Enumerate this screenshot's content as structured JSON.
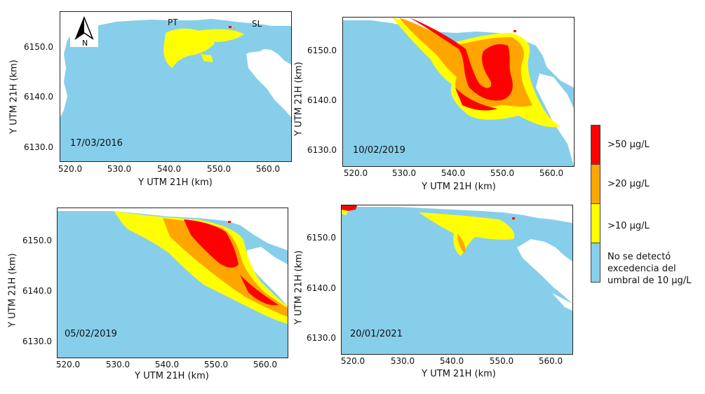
{
  "panels": [
    {
      "id": "p1",
      "date": "17/03/2016",
      "xlabel": "Y UTM 21H (km)",
      "ylabel": "Y UTM 21H (km)",
      "xticks": [
        "520.0",
        "530.0",
        "540.0",
        "550.0",
        "560.0"
      ],
      "yticks": [
        "6150.0",
        "6140.0",
        "6130.0"
      ],
      "places": [
        "PT",
        "SL"
      ],
      "has_north_arrow": true,
      "north_label": "N",
      "intensity": "low"
    },
    {
      "id": "p2",
      "date": "10/02/2019",
      "xlabel": "Y UTM 21H (km)",
      "ylabel": "Y UTM 21H (km)",
      "xticks": [
        "520.0",
        "530.0",
        "540.0",
        "550.0",
        "560.0"
      ],
      "yticks": [
        "6150.0",
        "6140.0",
        "6130.0"
      ],
      "intensity": "very-high"
    },
    {
      "id": "p3",
      "date": "05/02/2019",
      "xlabel": "Y UTM 21H (km)",
      "ylabel": "Y UTM 21H (km)",
      "xticks": [
        "520.0",
        "530.0",
        "540.0",
        "550.0",
        "560.0"
      ],
      "yticks": [
        "6150.0",
        "6140.0",
        "6130.0"
      ],
      "intensity": "high"
    },
    {
      "id": "p4",
      "date": "20/01/2021",
      "xlabel": "Y UTM 21H (km)",
      "ylabel": "Y UTM 21H (km)",
      "xticks": [
        "520.0",
        "530.0",
        "540.0",
        "550.0",
        "560.0"
      ],
      "yticks": [
        "6150.0",
        "6140.0",
        "6130.0"
      ],
      "intensity": "low"
    }
  ],
  "legend": {
    "items": [
      {
        "label": ">50 μg/L",
        "color": "#FF0000"
      },
      {
        "label": ">20 μg/L",
        "color": "#FFA500"
      },
      {
        "label": ">10 μg/L",
        "color": "#FFFF00"
      },
      {
        "label": "No se detectó excedencia del umbral de 10 μg/L",
        "color": "#87CEEB",
        "lines": [
          "No se detectó",
          "excedencia del",
          "umbral de 10 μg/L"
        ]
      }
    ]
  },
  "colors": {
    "water": "#87CEEB",
    "land": "#FFFFFF",
    "yellow": "#FFFF00",
    "orange": "#FFA500",
    "red": "#FF0000"
  }
}
